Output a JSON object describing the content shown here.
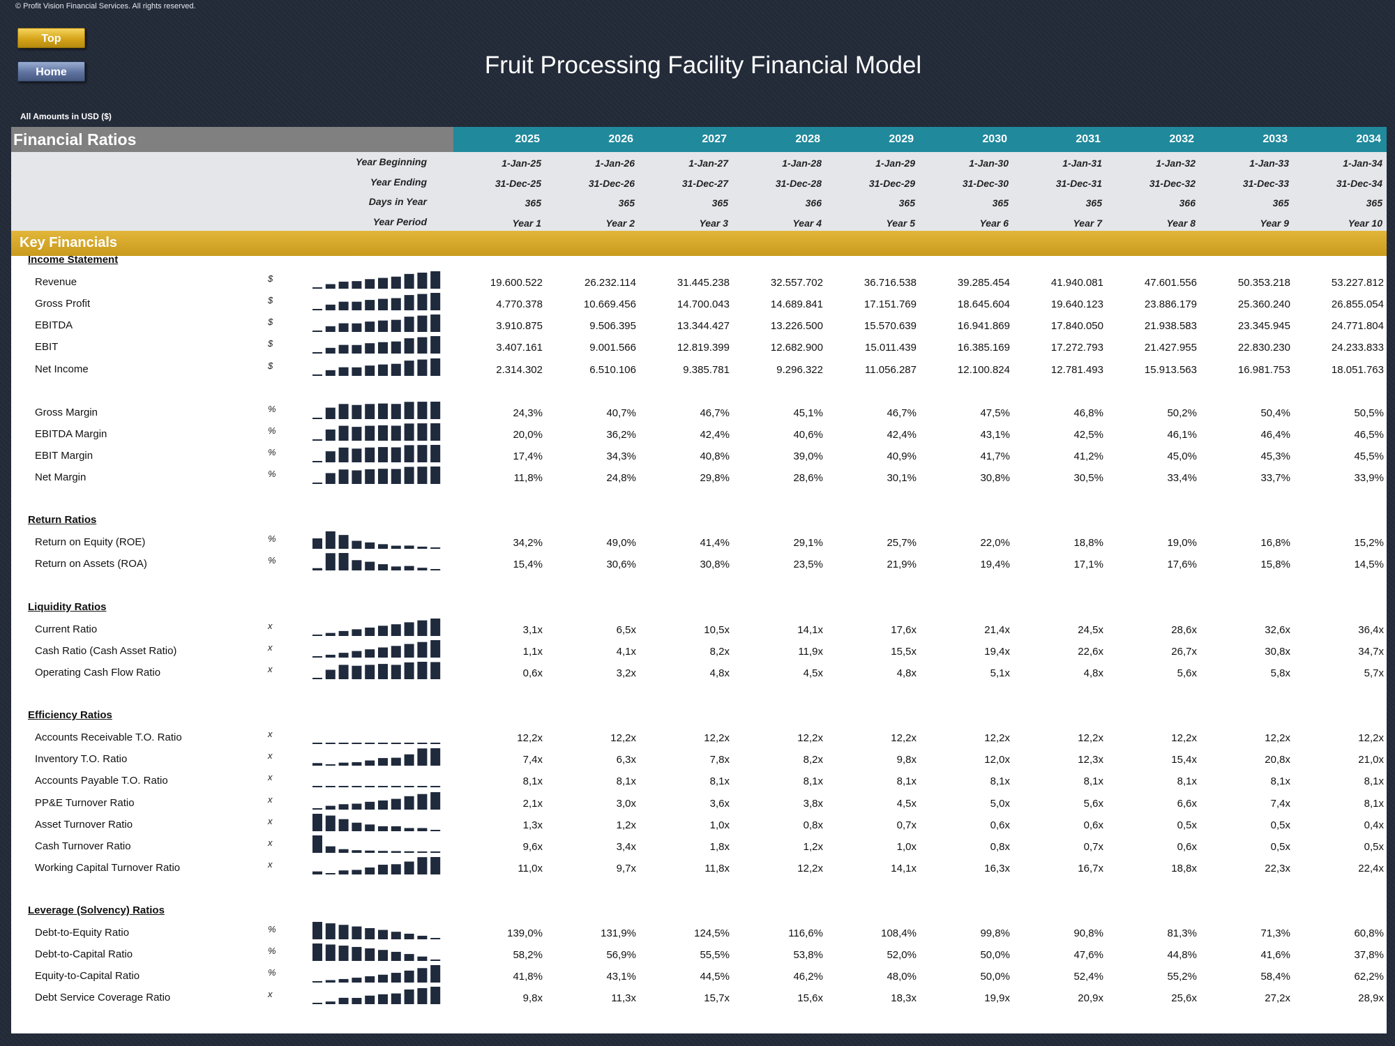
{
  "copyright": "© Profit Vision Financial Services. All rights reserved.",
  "buttons": {
    "top": "Top",
    "home": "Home"
  },
  "title": "Fruit Processing Facility Financial Model",
  "amounts_note": "All Amounts in  USD ($)",
  "header": {
    "section_title": "Financial Ratios",
    "years": [
      "2025",
      "2026",
      "2027",
      "2028",
      "2029",
      "2030",
      "2031",
      "2032",
      "2033",
      "2034"
    ]
  },
  "info_rows": [
    {
      "label": "Year Beginning",
      "values": [
        "1-Jan-25",
        "1-Jan-26",
        "1-Jan-27",
        "1-Jan-28",
        "1-Jan-29",
        "1-Jan-30",
        "1-Jan-31",
        "1-Jan-32",
        "1-Jan-33",
        "1-Jan-34"
      ]
    },
    {
      "label": "Year Ending",
      "values": [
        "31-Dec-25",
        "31-Dec-26",
        "31-Dec-27",
        "31-Dec-28",
        "31-Dec-29",
        "31-Dec-30",
        "31-Dec-31",
        "31-Dec-32",
        "31-Dec-33",
        "31-Dec-34"
      ]
    },
    {
      "label": "Days in Year",
      "values": [
        "365",
        "365",
        "365",
        "366",
        "365",
        "365",
        "365",
        "366",
        "365",
        "365"
      ]
    },
    {
      "label": "Year Period",
      "values": [
        "Year 1",
        "Year 2",
        "Year 3",
        "Year 4",
        "Year 5",
        "Year 6",
        "Year 7",
        "Year 8",
        "Year 9",
        "Year 10"
      ]
    }
  ],
  "key_financials_title": "Key Financials",
  "sparkline_color": "#1f2a3c",
  "sections": [
    {
      "title": "Income Statement",
      "rows": [
        {
          "label": "Revenue",
          "unit": "$",
          "values": [
            "19.600.522",
            "26.232.114",
            "31.445.238",
            "32.557.702",
            "36.716.538",
            "39.285.454",
            "41.940.081",
            "47.601.556",
            "50.353.218",
            "53.227.812"
          ]
        },
        {
          "label": "Gross Profit",
          "unit": "$",
          "values": [
            "4.770.378",
            "10.669.456",
            "14.700.043",
            "14.689.841",
            "17.151.769",
            "18.645.604",
            "19.640.123",
            "23.886.179",
            "25.360.240",
            "26.855.054"
          ]
        },
        {
          "label": "EBITDA",
          "unit": "$",
          "values": [
            "3.910.875",
            "9.506.395",
            "13.344.427",
            "13.226.500",
            "15.570.639",
            "16.941.869",
            "17.840.050",
            "21.938.583",
            "23.345.945",
            "24.771.804"
          ]
        },
        {
          "label": "EBIT",
          "unit": "$",
          "values": [
            "3.407.161",
            "9.001.566",
            "12.819.399",
            "12.682.900",
            "15.011.439",
            "16.385.169",
            "17.272.793",
            "21.427.955",
            "22.830.230",
            "24.233.833"
          ]
        },
        {
          "label": "Net Income",
          "unit": "$",
          "values": [
            "2.314.302",
            "6.510.106",
            "9.385.781",
            "9.296.322",
            "11.056.287",
            "12.100.824",
            "12.781.493",
            "15.913.563",
            "16.981.753",
            "18.051.763"
          ]
        },
        {
          "gap": true
        },
        {
          "label": "Gross Margin",
          "unit": "%",
          "values": [
            "24,3%",
            "40,7%",
            "46,7%",
            "45,1%",
            "46,7%",
            "47,5%",
            "46,8%",
            "50,2%",
            "50,4%",
            "50,5%"
          ]
        },
        {
          "label": "EBITDA Margin",
          "unit": "%",
          "values": [
            "20,0%",
            "36,2%",
            "42,4%",
            "40,6%",
            "42,4%",
            "43,1%",
            "42,5%",
            "46,1%",
            "46,4%",
            "46,5%"
          ]
        },
        {
          "label": "EBIT Margin",
          "unit": "%",
          "values": [
            "17,4%",
            "34,3%",
            "40,8%",
            "39,0%",
            "40,9%",
            "41,7%",
            "41,2%",
            "45,0%",
            "45,3%",
            "45,5%"
          ]
        },
        {
          "label": "Net Margin",
          "unit": "%",
          "values": [
            "11,8%",
            "24,8%",
            "29,8%",
            "28,6%",
            "30,1%",
            "30,8%",
            "30,5%",
            "33,4%",
            "33,7%",
            "33,9%"
          ]
        }
      ]
    },
    {
      "title": "Return Ratios",
      "rows": [
        {
          "label": "Return on Equity (ROE)",
          "unit": "%",
          "values": [
            "34,2%",
            "49,0%",
            "41,4%",
            "29,1%",
            "25,7%",
            "22,0%",
            "18,8%",
            "19,0%",
            "16,8%",
            "15,2%"
          ]
        },
        {
          "label": "Return on Assets (ROA)",
          "unit": "%",
          "values": [
            "15,4%",
            "30,6%",
            "30,8%",
            "23,5%",
            "21,9%",
            "19,4%",
            "17,1%",
            "17,6%",
            "15,8%",
            "14,5%"
          ]
        }
      ]
    },
    {
      "title": "Liquidity Ratios",
      "rows": [
        {
          "label": "Current Ratio",
          "unit": "x",
          "values": [
            "3,1x",
            "6,5x",
            "10,5x",
            "14,1x",
            "17,6x",
            "21,4x",
            "24,5x",
            "28,6x",
            "32,6x",
            "36,4x"
          ]
        },
        {
          "label": "Cash Ratio (Cash Asset Ratio)",
          "unit": "x",
          "values": [
            "1,1x",
            "4,1x",
            "8,2x",
            "11,9x",
            "15,5x",
            "19,4x",
            "22,6x",
            "26,7x",
            "30,8x",
            "34,7x"
          ]
        },
        {
          "label": "Operating Cash Flow Ratio",
          "unit": "x",
          "values": [
            "0,6x",
            "3,2x",
            "4,8x",
            "4,5x",
            "4,8x",
            "5,1x",
            "4,8x",
            "5,6x",
            "5,8x",
            "5,7x"
          ]
        }
      ]
    },
    {
      "title": "Efficiency Ratios",
      "rows": [
        {
          "label": "Accounts Receivable T.O. Ratio",
          "unit": "x",
          "values": [
            "12,2x",
            "12,2x",
            "12,2x",
            "12,2x",
            "12,2x",
            "12,2x",
            "12,2x",
            "12,2x",
            "12,2x",
            "12,2x"
          ]
        },
        {
          "label": "Inventory T.O. Ratio",
          "unit": "x",
          "values": [
            "7,4x",
            "6,3x",
            "7,8x",
            "8,2x",
            "9,8x",
            "12,0x",
            "12,3x",
            "15,4x",
            "20,8x",
            "21,0x"
          ]
        },
        {
          "label": "Accounts Payable T.O. Ratio",
          "unit": "x",
          "values": [
            "8,1x",
            "8,1x",
            "8,1x",
            "8,1x",
            "8,1x",
            "8,1x",
            "8,1x",
            "8,1x",
            "8,1x",
            "8,1x"
          ]
        },
        {
          "label": "PP&E Turnover Ratio",
          "unit": "x",
          "values": [
            "2,1x",
            "3,0x",
            "3,6x",
            "3,8x",
            "4,5x",
            "5,0x",
            "5,6x",
            "6,6x",
            "7,4x",
            "8,1x"
          ]
        },
        {
          "label": "Asset Turnover Ratio",
          "unit": "x",
          "values": [
            "1,3x",
            "1,2x",
            "1,0x",
            "0,8x",
            "0,7x",
            "0,6x",
            "0,6x",
            "0,5x",
            "0,5x",
            "0,4x"
          ]
        },
        {
          "label": "Cash Turnover Ratio",
          "unit": "x",
          "values": [
            "9,6x",
            "3,4x",
            "1,8x",
            "1,2x",
            "1,0x",
            "0,8x",
            "0,7x",
            "0,6x",
            "0,5x",
            "0,5x"
          ]
        },
        {
          "label": "Working Capital Turnover Ratio",
          "unit": "x",
          "values": [
            "11,0x",
            "9,7x",
            "11,8x",
            "12,2x",
            "14,1x",
            "16,3x",
            "16,7x",
            "18,8x",
            "22,3x",
            "22,4x"
          ]
        }
      ]
    },
    {
      "title": "Leverage (Solvency) Ratios",
      "rows": [
        {
          "label": "Debt-to-Equity Ratio",
          "unit": "%",
          "values": [
            "139,0%",
            "131,9%",
            "124,5%",
            "116,6%",
            "108,4%",
            "99,8%",
            "90,8%",
            "81,3%",
            "71,3%",
            "60,8%"
          ]
        },
        {
          "label": "Debt-to-Capital Ratio",
          "unit": "%",
          "values": [
            "58,2%",
            "56,9%",
            "55,5%",
            "53,8%",
            "52,0%",
            "50,0%",
            "47,6%",
            "44,8%",
            "41,6%",
            "37,8%"
          ]
        },
        {
          "label": "Equity-to-Capital Ratio",
          "unit": "%",
          "values": [
            "41,8%",
            "43,1%",
            "44,5%",
            "46,2%",
            "48,0%",
            "50,0%",
            "52,4%",
            "55,2%",
            "58,4%",
            "62,2%"
          ]
        },
        {
          "label": "Debt Service Coverage Ratio",
          "unit": "x",
          "values": [
            "9,8x",
            "11,3x",
            "15,7x",
            "15,6x",
            "18,3x",
            "19,9x",
            "20,9x",
            "25,6x",
            "27,2x",
            "28,9x"
          ]
        }
      ]
    }
  ]
}
